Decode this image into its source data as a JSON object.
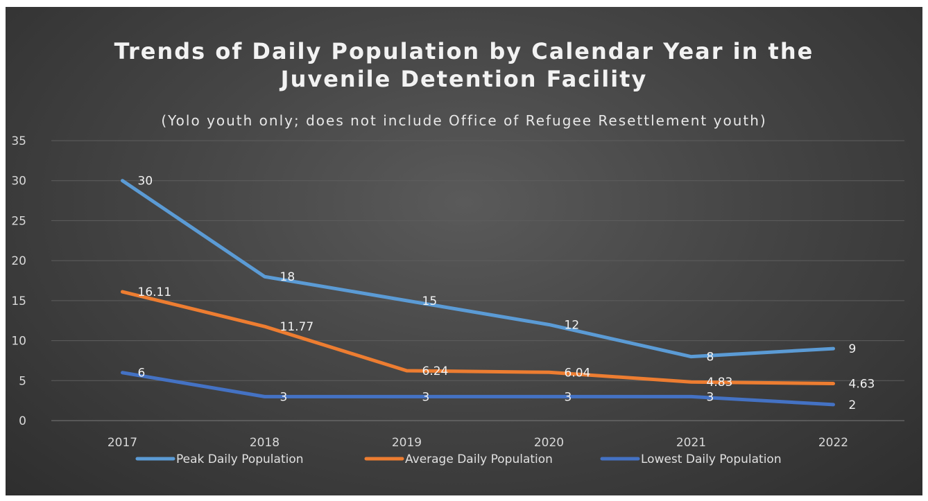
{
  "chart_data": {
    "type": "line",
    "title_lines": [
      "Trends of Daily Population by Calendar Year in the",
      "Juvenile Detention Facility"
    ],
    "subtitle": "(Yolo youth only; does not include Office of Refugee Resettlement youth)",
    "categories": [
      "2017",
      "2018",
      "2019",
      "2020",
      "2021",
      "2022"
    ],
    "series": [
      {
        "name": "Peak Daily Population",
        "values": [
          30,
          18,
          15,
          12,
          8,
          9
        ],
        "labels": [
          "30",
          "18",
          "15",
          "12",
          "8",
          "9"
        ],
        "color": "#5b9bd5"
      },
      {
        "name": "Average Daily Population",
        "values": [
          16.11,
          11.77,
          6.24,
          6.04,
          4.83,
          4.63
        ],
        "labels": [
          "16.11",
          "11.77",
          "6.24",
          "6.04",
          "4.83",
          "4.63"
        ],
        "color": "#ed7d31"
      },
      {
        "name": "Lowest Daily Population",
        "values": [
          6,
          3,
          3,
          3,
          3,
          2
        ],
        "labels": [
          "6",
          "3",
          "3",
          "3",
          "3",
          "2"
        ],
        "color": "#4472c4"
      }
    ],
    "ylim": [
      0,
      35
    ],
    "yticks": [
      0,
      5,
      10,
      15,
      20,
      25,
      30,
      35
    ],
    "grid": true,
    "legend_position": "bottom",
    "background": "#404040",
    "text_color": "#d9d9d9"
  }
}
